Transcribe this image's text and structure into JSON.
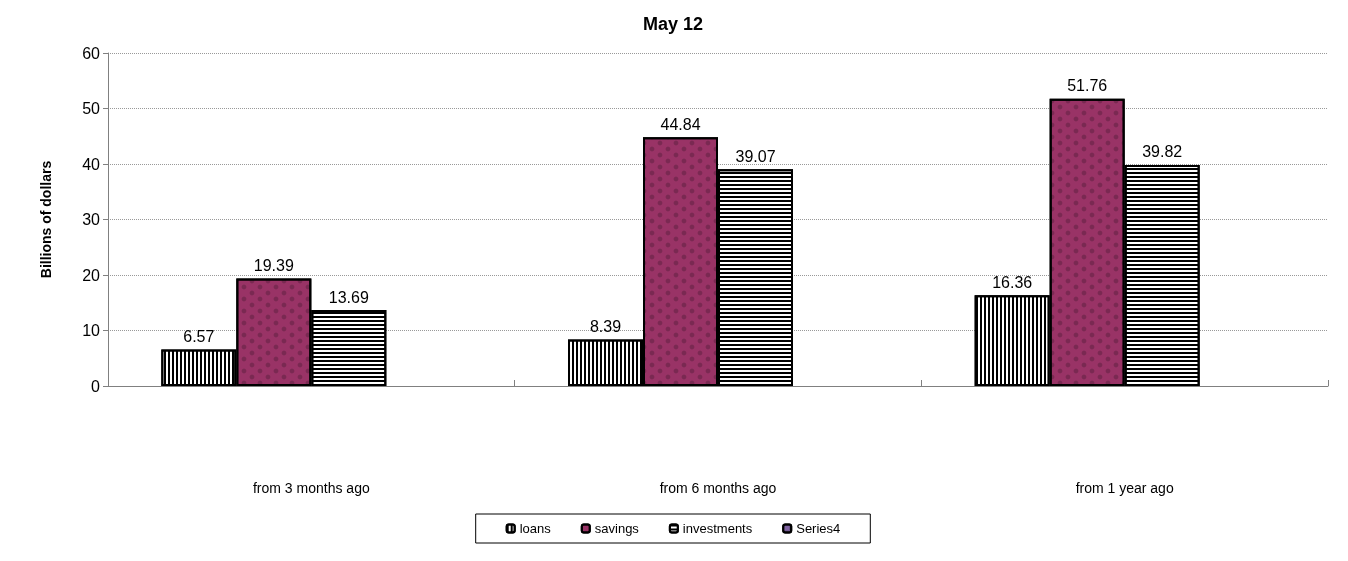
{
  "chart_data": {
    "type": "bar",
    "title": "May 12",
    "ylabel": "Billions of dollars",
    "categories": [
      "from 3 months ago",
      "from 6 months ago",
      "from 1 year ago"
    ],
    "series": [
      {
        "name": "loans",
        "color": "#ffffff",
        "values": [
          6.57,
          8.39,
          16.36
        ]
      },
      {
        "name": "savings",
        "color": "#993366",
        "values": [
          19.39,
          44.84,
          51.76
        ]
      },
      {
        "name": "investments",
        "color": "#ffffff",
        "values": [
          13.69,
          39.07,
          39.82
        ]
      },
      {
        "name": "Series4",
        "color": "#8064a2",
        "values": [
          null,
          null,
          null
        ]
      }
    ],
    "ylim": [
      0,
      60
    ],
    "yticks": [
      0,
      10,
      20,
      30,
      40,
      50,
      60
    ],
    "grid": "y",
    "legend": "bottom",
    "data_labels": true
  }
}
